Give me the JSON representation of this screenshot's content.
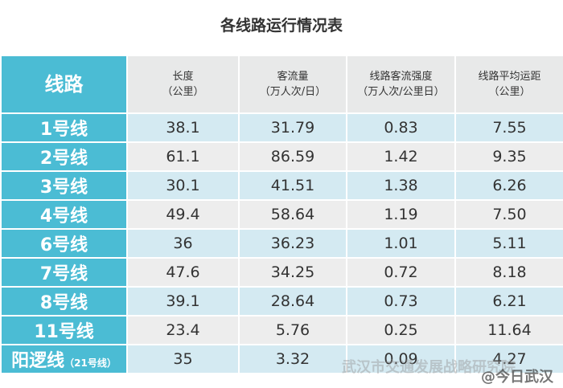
{
  "header": {
    "title": "各线路运行情况表"
  },
  "table": {
    "columns": [
      {
        "label": "线路"
      },
      {
        "label": "长度",
        "unit": "（公里）"
      },
      {
        "label": "客流量",
        "unit": "（万人次/日）"
      },
      {
        "label": "线路客流强度",
        "unit": "（万人次/公里日）"
      },
      {
        "label": "线路平均运距",
        "unit": "（公里）"
      }
    ],
    "rows": [
      {
        "line": "1号线",
        "cells": [
          "38.1",
          "31.79",
          "0.83",
          "7.55"
        ]
      },
      {
        "line": "2号线",
        "cells": [
          "61.1",
          "86.59",
          "1.42",
          "9.35"
        ]
      },
      {
        "line": "3号线",
        "cells": [
          "30.1",
          "41.51",
          "1.38",
          "6.26"
        ]
      },
      {
        "line": "4号线",
        "cells": [
          "49.4",
          "58.64",
          "1.19",
          "7.50"
        ]
      },
      {
        "line": "6号线",
        "cells": [
          "36",
          "36.23",
          "1.01",
          "5.11"
        ]
      },
      {
        "line": "7号线",
        "cells": [
          "47.6",
          "34.25",
          "0.72",
          "8.18"
        ]
      },
      {
        "line": "8号线",
        "cells": [
          "39.1",
          "28.64",
          "0.73",
          "6.21"
        ]
      },
      {
        "line": "11号线",
        "cells": [
          "23.4",
          "5.76",
          "0.25",
          "11.64"
        ]
      },
      {
        "line": "阳逻线",
        "note": "（21号线）",
        "cells": [
          "35",
          "3.32",
          "0.09",
          "4.27"
        ]
      }
    ]
  },
  "watermarks": [
    "武汉市交通发展战略研究院",
    "@今日武汉"
  ]
}
